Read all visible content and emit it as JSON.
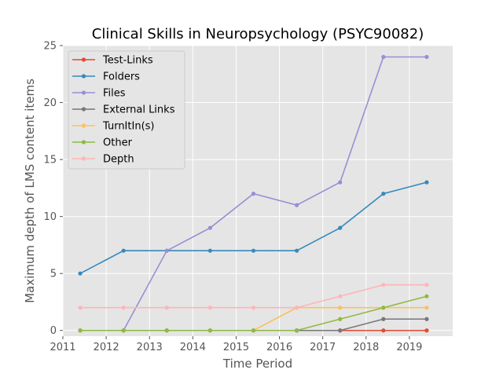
{
  "chart_data": {
    "type": "line",
    "title": "Clinical Skills in Neuropsychology (PSYC90082)",
    "xlabel": "Time Period",
    "ylabel": "Maximum depth of LMS content items",
    "xlim": [
      2011,
      2020
    ],
    "ylim": [
      -0.5,
      25
    ],
    "x_ticks": [
      "2011",
      "2012",
      "2013",
      "2014",
      "2015",
      "2016",
      "2017",
      "2018",
      "2019"
    ],
    "y_ticks": [
      "0",
      "5",
      "10",
      "15",
      "20",
      "25"
    ],
    "grid": true,
    "legend_position": "upper-left",
    "x": [
      2011.4,
      2012.4,
      2013.4,
      2014.4,
      2015.4,
      2016.4,
      2017.4,
      2018.4,
      2019.4
    ],
    "series": [
      {
        "name": "Test-Links",
        "color": "#E24A33",
        "values": [
          0,
          0,
          0,
          0,
          0,
          0,
          0,
          0,
          0
        ]
      },
      {
        "name": "Folders",
        "color": "#348ABD",
        "values": [
          5,
          7,
          7,
          7,
          7,
          7,
          9,
          12,
          13
        ]
      },
      {
        "name": "Files",
        "color": "#988ED5",
        "values": [
          0,
          0,
          7,
          9,
          12,
          11,
          13,
          24,
          24
        ]
      },
      {
        "name": "External Links",
        "color": "#777777",
        "values": [
          0,
          0,
          0,
          0,
          0,
          0,
          0,
          1,
          1
        ]
      },
      {
        "name": "TurnItIn(s)",
        "color": "#FBC15E",
        "values": [
          0,
          0,
          0,
          0,
          0,
          2,
          2,
          2,
          2
        ]
      },
      {
        "name": "Other",
        "color": "#8EBA42",
        "values": [
          0,
          0,
          0,
          0,
          0,
          0,
          1,
          2,
          3
        ]
      },
      {
        "name": "Depth",
        "color": "#FFB5B8",
        "values": [
          2,
          2,
          2,
          2,
          2,
          2,
          3,
          4,
          4
        ]
      }
    ]
  }
}
